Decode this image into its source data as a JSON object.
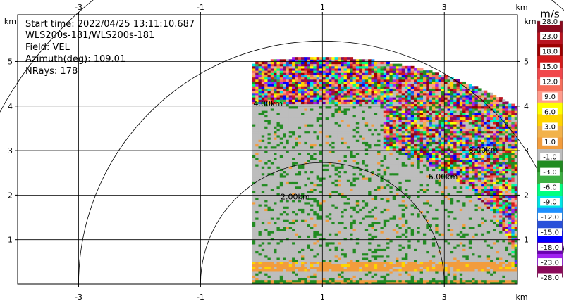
{
  "chart_data": {
    "type": "heatmap",
    "info": {
      "start_time": "Start time: 2022/04/25 13:11:10.687",
      "instrument": "WLS200s-181/WLS200s-181",
      "field": "Field: VEL",
      "azimuth": "Azimuth(deg): 109.01",
      "nrays": "NRays: 178"
    },
    "axis_unit": "km",
    "xlim": [
      -4,
      4.2
    ],
    "ylim": [
      0,
      6.05
    ],
    "x_ticks": [
      {
        "value": -3,
        "label": "-3"
      },
      {
        "value": -1,
        "label": "-1"
      },
      {
        "value": 1,
        "label": "1"
      },
      {
        "value": 3,
        "label": "3"
      }
    ],
    "y_ticks": [
      {
        "value": 1,
        "label": "1"
      },
      {
        "value": 2,
        "label": "2"
      },
      {
        "value": 3,
        "label": "3"
      },
      {
        "value": 4,
        "label": "4"
      },
      {
        "value": 5,
        "label": "5"
      }
    ],
    "grid": true,
    "range_rings": [
      {
        "radius_km": 2,
        "label": "2.00km"
      },
      {
        "radius_km": 4,
        "label": "4.00km"
      },
      {
        "radius_km": 6,
        "label": "6.00km"
      },
      {
        "radius_km": 8,
        "label": "8.00km"
      }
    ],
    "radar_x_km": 1,
    "sector": {
      "x_min_km": -0.15,
      "max_range_km": 5.1
    },
    "colorbar": {
      "unit": "m/s",
      "tick_labels": [
        "28.0",
        "23.0",
        "18.0",
        "15.0",
        "12.0",
        "9.0",
        "6.0",
        "3.0",
        "1.0",
        "-1.0",
        "-3.0",
        "-6.0",
        "-9.0",
        "-12.0",
        "-15.0",
        "-18.0",
        "-23.0",
        "-28.0"
      ],
      "colors": [
        "#8b0a1e",
        "#b81420",
        "#9c0000",
        "#d41c1c",
        "#f0474b",
        "#f56e5c",
        "#ff9c8c",
        "#ffff00",
        "#ffd400",
        "#f2b24a",
        "#f29c3c",
        "#bdbdbd",
        "#228b22",
        "#3cb043",
        "#00ff7f",
        "#00e5e5",
        "#1e90ff",
        "#2950d9",
        "#0000ff",
        "#6a00b0",
        "#a020f0",
        "#8b0a5a"
      ]
    }
  }
}
